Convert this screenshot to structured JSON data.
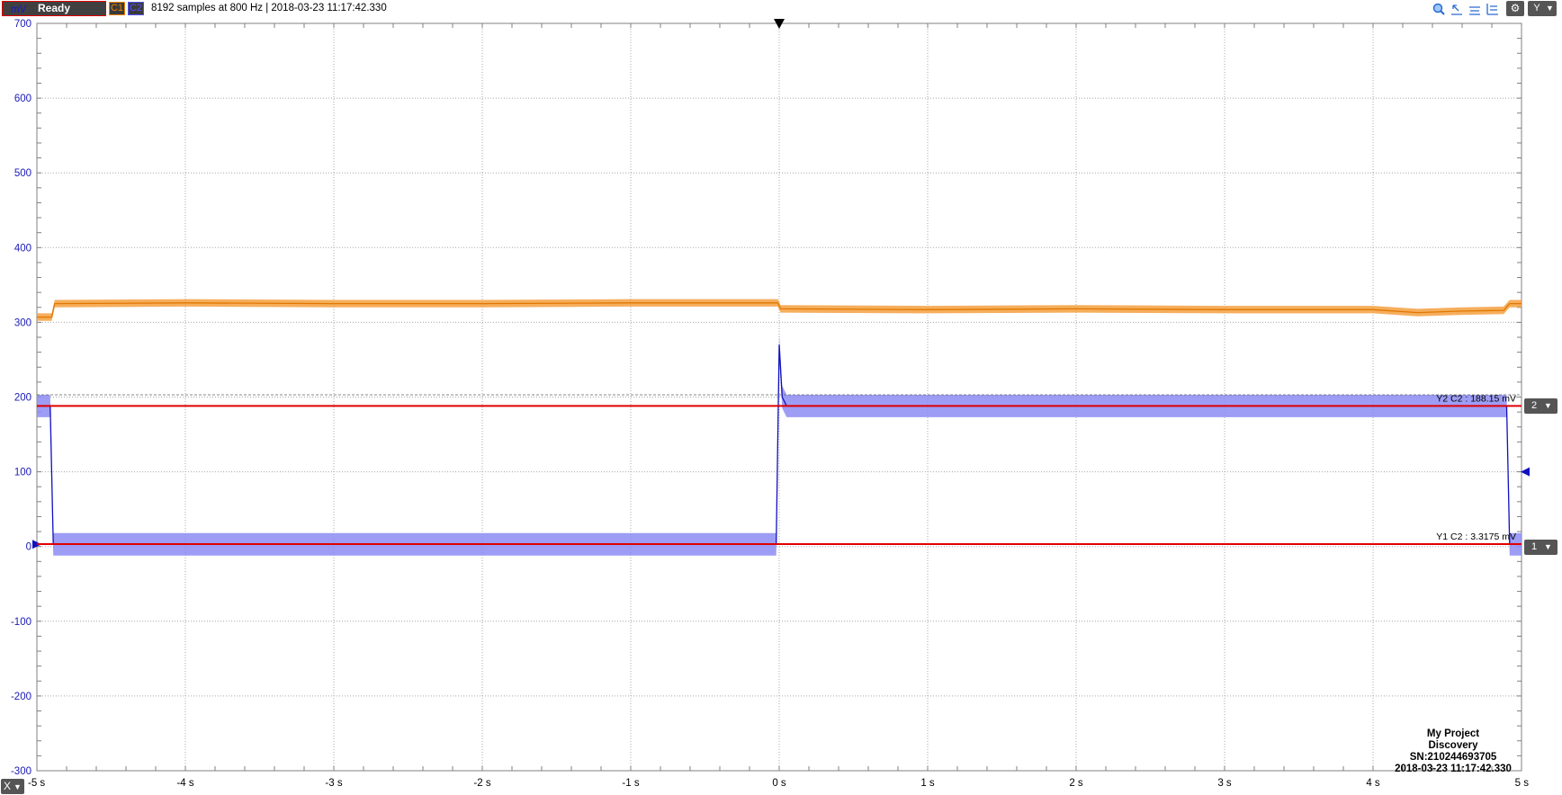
{
  "toolbar": {
    "status": "Ready",
    "ch1_label": "C1",
    "ch2_label": "C2",
    "info": "8192 samples at 800 Hz | 2018-03-23 11:17:42.330",
    "y_button": "Y",
    "icons": [
      "zoom-icon",
      "cursor-icon",
      "cursor-icon",
      "cursor-icon",
      "gear-icon",
      "chevron-down-icon"
    ]
  },
  "x_button": "X",
  "colors": {
    "c1": "#f5a040",
    "c1_line": "#e07800",
    "c2": "#8c8cf5",
    "c2_line": "#1010c0",
    "cursor": "#e00000",
    "axis_text": "#1a1ab8"
  },
  "chart_data": {
    "type": "line",
    "y_unit_label": "mV",
    "ylim": [
      -300,
      700
    ],
    "xlim": [
      -5,
      5
    ],
    "y_ticks": [
      700,
      600,
      500,
      400,
      300,
      200,
      100,
      0,
      -100,
      -200,
      -300
    ],
    "y_tick_labels": [
      "700",
      "600",
      "500",
      "400",
      "300",
      "200",
      "100",
      "0",
      "-100",
      "-200",
      "-300"
    ],
    "x_ticks": [
      -5,
      -4,
      -3,
      -2,
      -1,
      0,
      1,
      2,
      3,
      4,
      5
    ],
    "x_tick_labels": [
      "-5 s",
      "-4 s",
      "-3 s",
      "-2 s",
      "-1 s",
      "0 s",
      "1 s",
      "2 s",
      "3 s",
      "4 s",
      "5 s"
    ],
    "grid": true,
    "trigger_x": 0,
    "series": [
      {
        "name": "C1",
        "x": [
          -5,
          -4.9,
          -4.88,
          -4,
          -3,
          -2,
          -1,
          -0.01,
          0.01,
          1,
          2,
          3,
          4,
          4.3,
          4.6,
          4.88,
          4.92,
          5
        ],
        "y": [
          307,
          307,
          325,
          326,
          325,
          325,
          326,
          326,
          318,
          317,
          318,
          317,
          317,
          313,
          315,
          316,
          325,
          325
        ],
        "band": 5
      },
      {
        "name": "C2",
        "x": [
          -5,
          -4.91,
          -4.89,
          -4,
          -3,
          -2,
          -1,
          -0.02,
          0.0,
          0.02,
          0.05,
          1,
          2,
          3,
          4,
          4.9,
          4.92,
          5
        ],
        "y": [
          188,
          188,
          3,
          3,
          3,
          3,
          3,
          3,
          270,
          200,
          188,
          188,
          188,
          188,
          188,
          188,
          3,
          3
        ],
        "band": 15
      }
    ],
    "cursors": [
      {
        "label": "Y2 C2 : 188.15 mV",
        "value": 188.15,
        "tag": "2"
      },
      {
        "label": "Y1 C2 : 3.3175 mV",
        "value": 3.3175,
        "tag": "1"
      }
    ],
    "watermark": [
      "My Project",
      "Discovery",
      "SN:210244693705",
      "2018-03-23 11:17:42.330"
    ]
  }
}
